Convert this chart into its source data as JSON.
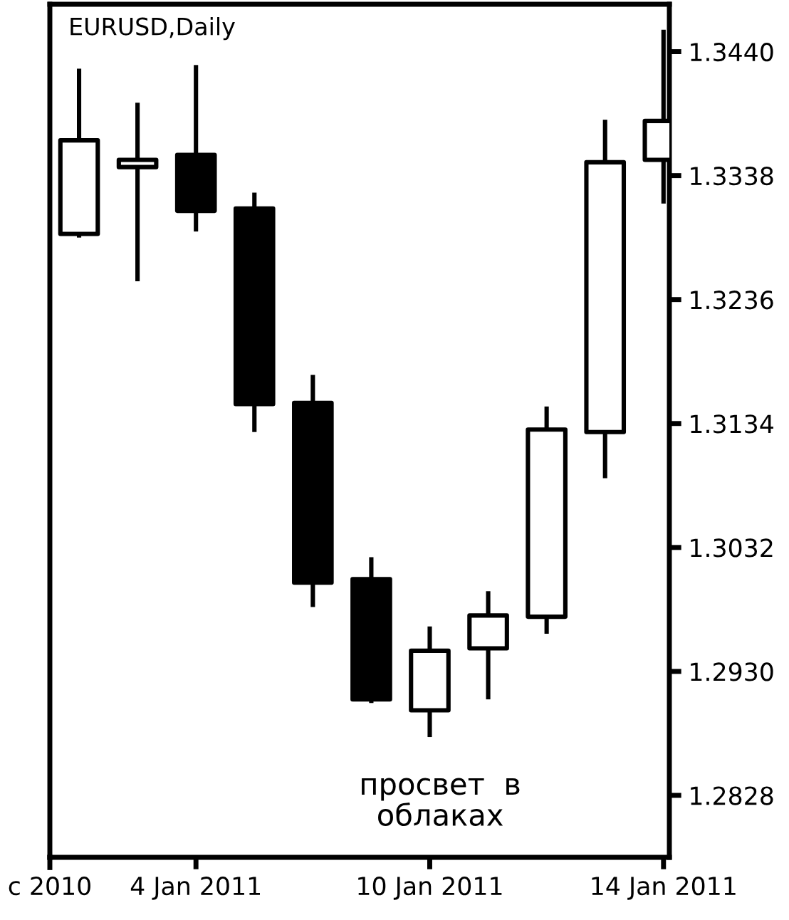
{
  "chart_data": {
    "type": "candlestick",
    "title": "EURUSD,Daily",
    "categories": [
      null,
      null,
      "4 Jan 2011",
      null,
      null,
      null,
      "10 Jan 2011",
      null,
      null,
      null,
      "14 Jan 2011"
    ],
    "ohlc": [
      [
        1.329,
        1.3426,
        1.3287,
        1.3367
      ],
      [
        1.3345,
        1.3398,
        1.3251,
        1.3351
      ],
      [
        1.3355,
        1.3429,
        1.3292,
        1.3309
      ],
      [
        1.3311,
        1.3324,
        1.3127,
        1.315
      ],
      [
        1.3151,
        1.3174,
        1.2983,
        1.3003
      ],
      [
        1.3006,
        1.3024,
        1.2904,
        1.2907
      ],
      [
        1.2898,
        1.2967,
        1.2876,
        1.2947
      ],
      [
        1.2949,
        1.2996,
        1.2907,
        1.2976
      ],
      [
        1.2975,
        1.3148,
        1.2961,
        1.3129
      ],
      [
        1.3127,
        1.3384,
        1.3089,
        1.3349
      ],
      [
        1.3351,
        1.3458,
        1.3315,
        1.3383
      ]
    ],
    "ylim": [
      1.2777,
      1.3479
    ],
    "yticks": [
      {
        "value": 1.2828,
        "label": "1.2828"
      },
      {
        "value": 1.293,
        "label": "1.2930"
      },
      {
        "value": 1.3032,
        "label": "1.3032"
      },
      {
        "value": 1.3134,
        "label": "1.3134"
      },
      {
        "value": 1.3236,
        "label": "1.3236"
      },
      {
        "value": 1.3338,
        "label": "1.3338"
      },
      {
        "value": 1.344,
        "label": "1.3440"
      }
    ],
    "annotations": [
      "просвет  в\nоблаках",
      "c 2010"
    ],
    "grid": false,
    "legend": false
  }
}
